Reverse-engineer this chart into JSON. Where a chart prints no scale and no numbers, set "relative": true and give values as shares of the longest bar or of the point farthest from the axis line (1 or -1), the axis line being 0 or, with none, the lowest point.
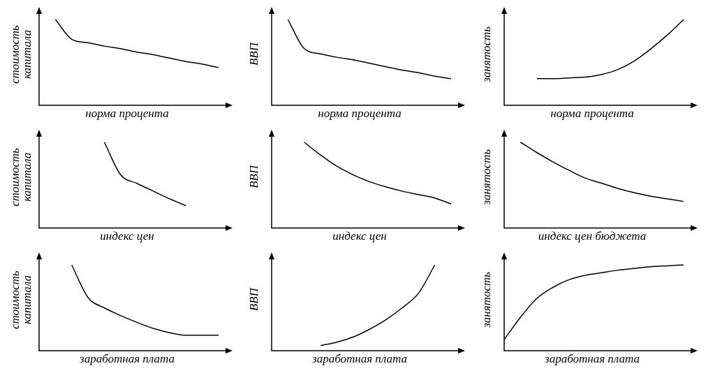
{
  "chart_data": [
    {
      "type": "line",
      "relative": true,
      "xlabel": "норма процента",
      "ylabel": "стоимость капитала",
      "categories": [
        null,
        null,
        null,
        null,
        null,
        null,
        null,
        null,
        null,
        null,
        null,
        null
      ],
      "legend": false,
      "series": [
        {
          "color": "#000000",
          "values": [
            null,
            1.0,
            0.77,
            0.73,
            0.69,
            0.66,
            0.62,
            0.59,
            0.55,
            0.51,
            0.48,
            0.44
          ]
        }
      ]
    },
    {
      "type": "line",
      "relative": true,
      "xlabel": "норма процента",
      "ylabel": "ВВП",
      "categories": [
        null,
        null,
        null,
        null,
        null,
        null,
        null,
        null,
        null,
        null,
        null,
        null
      ],
      "legend": false,
      "series": [
        {
          "color": "#000000",
          "values": [
            null,
            1.0,
            0.66,
            0.6,
            0.56,
            0.53,
            0.49,
            0.45,
            0.41,
            0.38,
            0.34,
            0.31
          ]
        }
      ]
    },
    {
      "type": "line",
      "relative": true,
      "xlabel": "норма процента",
      "ylabel": "занятость",
      "categories": [
        null,
        null,
        null,
        null,
        null,
        null,
        null,
        null,
        null,
        null,
        null,
        null
      ],
      "legend": false,
      "series": [
        {
          "color": "#000000",
          "values": [
            null,
            null,
            0.31,
            0.31,
            0.32,
            0.33,
            0.36,
            0.42,
            0.52,
            0.66,
            0.82,
            1.0
          ]
        }
      ]
    },
    {
      "type": "line",
      "relative": true,
      "xlabel": "индекс цен",
      "ylabel": "стоимость капитала",
      "categories": [
        null,
        null,
        null,
        null,
        null,
        null,
        null,
        null,
        null,
        null,
        null,
        null
      ],
      "legend": false,
      "series": [
        {
          "color": "#000000",
          "values": [
            null,
            null,
            null,
            null,
            1.0,
            0.62,
            0.52,
            0.43,
            0.34,
            0.26,
            null,
            null
          ]
        }
      ]
    },
    {
      "type": "line",
      "relative": true,
      "xlabel": "индекс цен",
      "ylabel": "ВВП",
      "categories": [
        null,
        null,
        null,
        null,
        null,
        null,
        null,
        null,
        null,
        null,
        null,
        null
      ],
      "legend": false,
      "series": [
        {
          "color": "#000000",
          "values": [
            null,
            null,
            1.0,
            0.85,
            0.72,
            0.62,
            0.54,
            0.48,
            0.43,
            0.39,
            0.35,
            0.28
          ]
        }
      ]
    },
    {
      "type": "line",
      "relative": true,
      "xlabel": "индекс цен бюджета",
      "ylabel": "занятость",
      "categories": [
        null,
        null,
        null,
        null,
        null,
        null,
        null,
        null,
        null,
        null,
        null,
        null
      ],
      "legend": false,
      "series": [
        {
          "color": "#000000",
          "values": [
            null,
            1.0,
            0.88,
            0.77,
            0.67,
            0.58,
            0.52,
            0.46,
            0.41,
            0.37,
            0.34,
            0.31
          ]
        }
      ]
    },
    {
      "type": "line",
      "relative": true,
      "xlabel": "заработная плата",
      "ylabel": "стоимость капитала",
      "categories": [
        null,
        null,
        null,
        null,
        null,
        null,
        null,
        null,
        null,
        null,
        null,
        null
      ],
      "legend": false,
      "series": [
        {
          "color": "#000000",
          "values": [
            null,
            null,
            1.0,
            0.62,
            0.5,
            0.41,
            0.33,
            0.26,
            0.21,
            0.18,
            0.18,
            0.18
          ]
        }
      ]
    },
    {
      "type": "line",
      "relative": true,
      "xlabel": "заработная плата",
      "ylabel": "ВВП",
      "categories": [
        null,
        null,
        null,
        null,
        null,
        null,
        null,
        null,
        null,
        null,
        null,
        null
      ],
      "legend": false,
      "series": [
        {
          "color": "#000000",
          "values": [
            null,
            null,
            null,
            0.06,
            0.1,
            0.16,
            0.25,
            0.36,
            0.5,
            0.67,
            1.0,
            null
          ]
        }
      ]
    },
    {
      "type": "line",
      "relative": true,
      "xlabel": "заработная плата",
      "ylabel": "занятость",
      "categories": [
        null,
        null,
        null,
        null,
        null,
        null,
        null,
        null,
        null,
        null,
        null,
        null
      ],
      "legend": false,
      "series": [
        {
          "color": "#000000",
          "values": [
            0.13,
            0.39,
            0.61,
            0.74,
            0.83,
            0.88,
            0.91,
            0.94,
            0.96,
            0.98,
            0.99,
            1.0
          ]
        }
      ]
    }
  ]
}
